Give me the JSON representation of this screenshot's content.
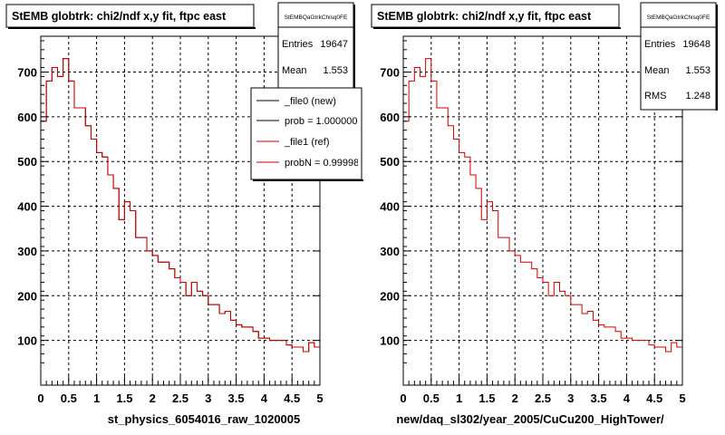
{
  "panels": [
    {
      "title": "StEMB globtrk: chi2/ndf x,y fit, ftpc east",
      "stats": {
        "name": "StEMBQaGtrkChisq0FE",
        "rows": [
          {
            "label": "Entries",
            "value": "19647"
          },
          {
            "label": "Mean",
            "value": "1.553"
          }
        ]
      },
      "xlabel": "st_physics_6054016_raw_1020005",
      "legend": [
        {
          "label": "_file0 (new)",
          "color": "#000000"
        },
        {
          "label": "prob = 1.000000",
          "color": "#000000"
        },
        {
          "label": "_file1 (ref)",
          "color": "#cc0000"
        },
        {
          "label": "probN = 0.999988",
          "color": "#cc0000"
        }
      ]
    },
    {
      "title": "StEMB globtrk: chi2/ndf x,y fit, ftpc east",
      "stats": {
        "name": "StEMBQaGtrkChisq0FE",
        "rows": [
          {
            "label": "Entries",
            "value": "19648"
          },
          {
            "label": "Mean",
            "value": "1.553"
          },
          {
            "label": "RMS",
            "value": "1.248"
          }
        ]
      },
      "xlabel": "new/daq_sl302/year_2005/CuCu200_HighTower/",
      "legend": []
    }
  ],
  "chart_data": [
    {
      "type": "histogram",
      "title": "StEMB globtrk: chi2/ndf x,y fit, ftpc east",
      "xlabel": "st_physics_6054016_raw_1020005",
      "ylabel": "",
      "xlim": [
        0,
        5
      ],
      "ylim": [
        0,
        780
      ],
      "xticks": [
        0,
        0.5,
        1,
        1.5,
        2,
        2.5,
        3,
        3.5,
        4,
        4.5,
        5
      ],
      "yticks": [
        100,
        200,
        300,
        400,
        500,
        600,
        700
      ],
      "grid": true,
      "bin_width": 0.1,
      "series": [
        {
          "name": "_file0 (new)",
          "color": "#000000",
          "values": [
            590,
            680,
            710,
            690,
            730,
            680,
            620,
            620,
            580,
            550,
            520,
            510,
            470,
            440,
            370,
            410,
            390,
            330,
            330,
            300,
            290,
            275,
            275,
            260,
            240,
            230,
            200,
            230,
            210,
            200,
            180,
            180,
            160,
            165,
            145,
            135,
            130,
            130,
            120,
            105,
            105,
            100,
            100,
            100,
            90,
            85,
            85,
            75,
            95,
            85
          ]
        },
        {
          "name": "_file1 (ref)",
          "color": "#cc0000",
          "values": [
            590,
            680,
            710,
            690,
            730,
            680,
            620,
            620,
            580,
            550,
            520,
            510,
            470,
            440,
            370,
            410,
            390,
            330,
            330,
            300,
            290,
            275,
            275,
            260,
            240,
            230,
            200,
            230,
            210,
            200,
            180,
            180,
            160,
            165,
            145,
            135,
            130,
            130,
            120,
            105,
            105,
            100,
            100,
            100,
            90,
            85,
            85,
            75,
            95,
            85
          ]
        }
      ]
    },
    {
      "type": "histogram",
      "title": "StEMB globtrk: chi2/ndf x,y fit, ftpc east",
      "xlabel": "new/daq_sl302/year_2005/CuCu200_HighTower/",
      "ylabel": "",
      "xlim": [
        0,
        5
      ],
      "ylim": [
        0,
        780
      ],
      "xticks": [
        0,
        0.5,
        1,
        1.5,
        2,
        2.5,
        3,
        3.5,
        4,
        4.5,
        5
      ],
      "yticks": [
        100,
        200,
        300,
        400,
        500,
        600,
        700
      ],
      "grid": true,
      "bin_width": 0.1,
      "series": [
        {
          "name": "",
          "color": "#cc0000",
          "values": [
            590,
            680,
            710,
            690,
            730,
            680,
            620,
            620,
            580,
            550,
            520,
            510,
            470,
            440,
            370,
            410,
            390,
            330,
            330,
            300,
            290,
            275,
            275,
            260,
            240,
            230,
            200,
            230,
            210,
            200,
            180,
            180,
            160,
            165,
            145,
            135,
            130,
            130,
            120,
            105,
            105,
            100,
            100,
            100,
            90,
            85,
            85,
            75,
            95,
            85
          ]
        }
      ]
    }
  ]
}
